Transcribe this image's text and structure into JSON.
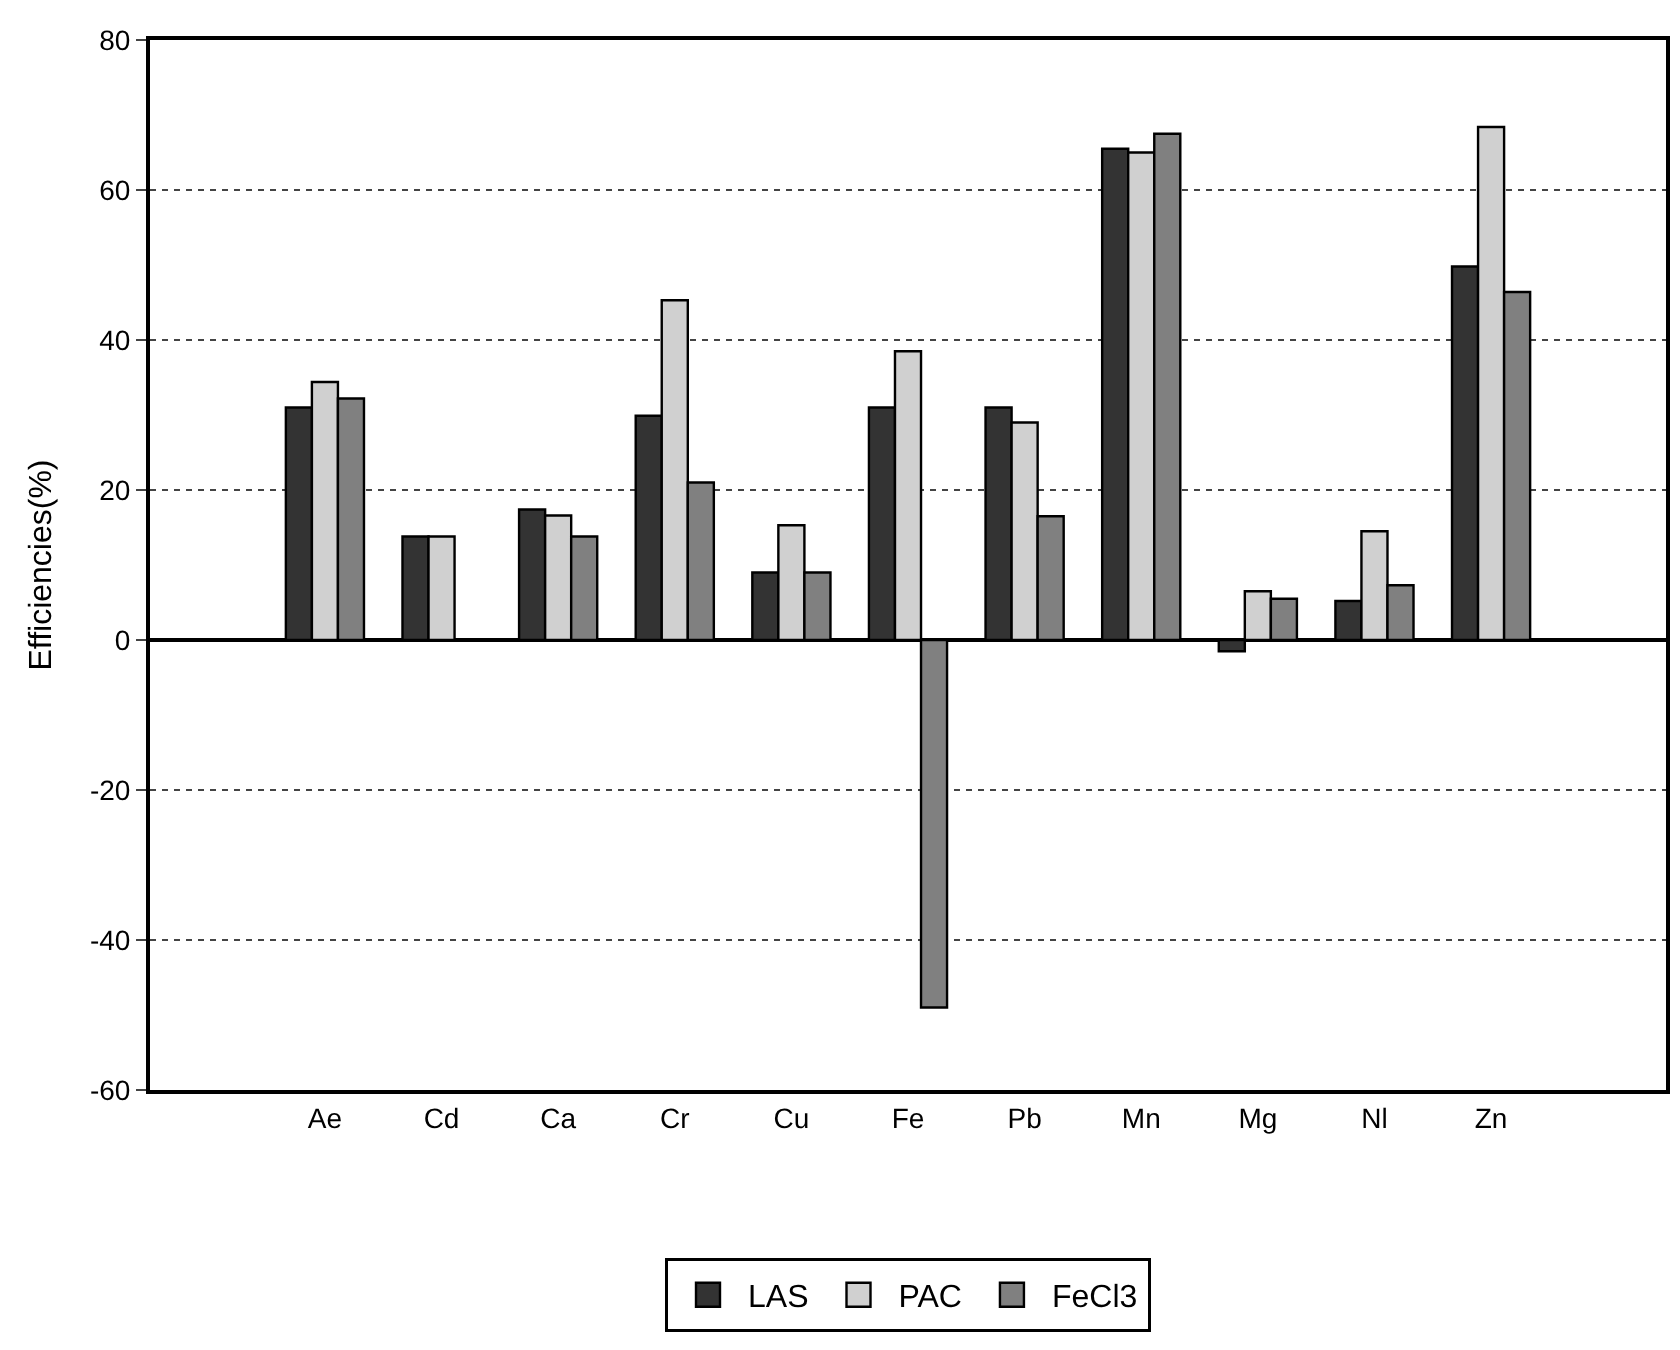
{
  "chart_data": {
    "type": "bar",
    "ylabel": "Efficiencies(%)",
    "categories": [
      null,
      "Ae",
      "Cd",
      "Ca",
      "Cr",
      "Cu",
      "Fe",
      "Pb",
      "Mn",
      "Mg",
      "Nl",
      "Zn",
      null
    ],
    "series": [
      {
        "name": "LAS",
        "color": "#333333",
        "values": [
          null,
          31,
          13.8,
          17.4,
          29.9,
          9,
          31,
          31,
          65.5,
          -1.5,
          5.2,
          49.8,
          null
        ]
      },
      {
        "name": "PAC",
        "color": "#d0d0d0",
        "values": [
          null,
          34.4,
          13.8,
          16.6,
          45.3,
          15.3,
          38.5,
          29,
          65,
          6.5,
          14.5,
          68.4,
          null
        ]
      },
      {
        "name": "FeCl3",
        "color": "#808080",
        "values": [
          null,
          32.2,
          null,
          13.8,
          21,
          9,
          -49,
          16.5,
          67.5,
          5.5,
          7.3,
          46.4,
          null
        ]
      }
    ],
    "ylim": [
      -60,
      80
    ],
    "yticks": [
      -60,
      -40,
      -20,
      0,
      20,
      40,
      60,
      80
    ],
    "grid": "y",
    "legend": "bottom"
  }
}
